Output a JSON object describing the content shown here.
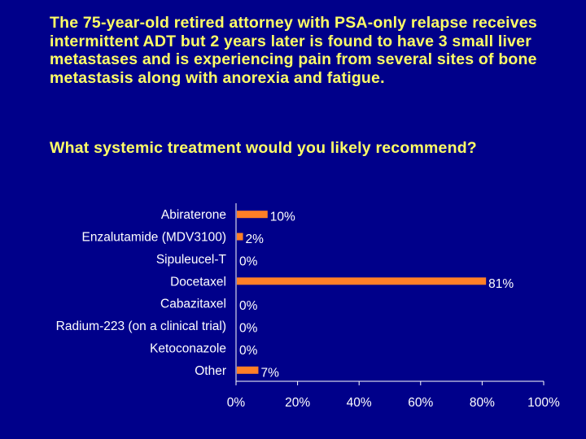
{
  "slide": {
    "question": "The 75-year-old retired attorney with PSA-only relapse receives intermittent ADT but 2 years later is found to have 3 small liver metastases and is experiencing pain from several sites of bone metastasis along with anorexia and fatigue.",
    "prompt": "What systemic treatment would you likely recommend?"
  },
  "colors": {
    "background": "#00008a",
    "heading": "#ffff66",
    "bar": "#ff7f27",
    "text": "#ffffff"
  },
  "chart_data": {
    "type": "bar",
    "orientation": "horizontal",
    "categories": [
      "Abiraterone",
      "Enzalutamide (MDV3100)",
      "Sipuleucel-T",
      "Docetaxel",
      "Cabazitaxel",
      "Radium-223 (on a clinical trial)",
      "Ketoconazole",
      "Other"
    ],
    "values": [
      10,
      2,
      0,
      81,
      0,
      0,
      0,
      7
    ],
    "value_labels": [
      "10%",
      "2%",
      "0%",
      "81%",
      "0%",
      "0%",
      "0%",
      "7%"
    ],
    "xlim": [
      0,
      100
    ],
    "x_ticks": [
      "0%",
      "20%",
      "40%",
      "60%",
      "80%",
      "100%"
    ],
    "grid": false,
    "legend": "none"
  }
}
